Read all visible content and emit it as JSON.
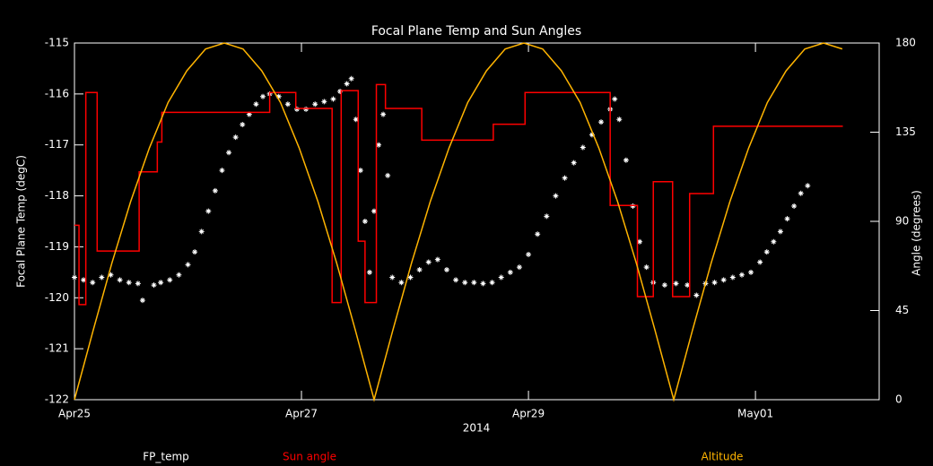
{
  "chart_data": {
    "type": "combo",
    "title": "Focal Plane Temp and Sun Angles",
    "xlabel": "2014",
    "ylabel": "Focal Plane Temp (degC)",
    "y2label": "Angle (degrees)",
    "xlim": [
      0,
      7.09
    ],
    "xticks": [
      {
        "value": 0,
        "label": "Apr25"
      },
      {
        "value": 2,
        "label": "Apr27"
      },
      {
        "value": 4,
        "label": "Apr29"
      },
      {
        "value": 6,
        "label": "May01"
      }
    ],
    "ylim": [
      -122,
      -115
    ],
    "yticks": [
      -122,
      -121,
      -120,
      -119,
      -118,
      -117,
      -116,
      -115
    ],
    "y2lim": [
      0,
      180
    ],
    "y2ticks": [
      0,
      45,
      90,
      135,
      180
    ],
    "series": [
      {
        "name": "FP_temp",
        "type": "scatter",
        "color": "#ffffff",
        "x": [
          0,
          0.08,
          0.16,
          0.24,
          0.32,
          0.4,
          0.48,
          0.56,
          0.6,
          0.7,
          0.76,
          0.84,
          0.92,
          1.0,
          1.06,
          1.12,
          1.18,
          1.24,
          1.3,
          1.36,
          1.42,
          1.48,
          1.54,
          1.6,
          1.66,
          1.72,
          1.8,
          1.88,
          1.96,
          2.04,
          2.12,
          2.2,
          2.28,
          2.34,
          2.4,
          2.44,
          2.48,
          2.52,
          2.56,
          2.6,
          2.64,
          2.68,
          2.72,
          2.76,
          2.8,
          2.88,
          2.96,
          3.04,
          3.12,
          3.2,
          3.28,
          3.36,
          3.44,
          3.52,
          3.6,
          3.68,
          3.76,
          3.84,
          3.92,
          4.0,
          4.08,
          4.16,
          4.24,
          4.32,
          4.4,
          4.48,
          4.56,
          4.64,
          4.72,
          4.76,
          4.8,
          4.86,
          4.92,
          4.98,
          5.04,
          5.1,
          5.2,
          5.3,
          5.4,
          5.48,
          5.56,
          5.64,
          5.72,
          5.8,
          5.88,
          5.96,
          6.04,
          6.1,
          6.16,
          6.22,
          6.28,
          6.34,
          6.4,
          6.46
        ],
        "values": [
          -119.6,
          -119.65,
          -119.7,
          -119.6,
          -119.55,
          -119.65,
          -119.7,
          -119.72,
          -120.05,
          -119.75,
          -119.7,
          -119.65,
          -119.55,
          -119.35,
          -119.1,
          -118.7,
          -118.3,
          -117.9,
          -117.5,
          -117.15,
          -116.85,
          -116.6,
          -116.4,
          -116.2,
          -116.05,
          -116.0,
          -116.05,
          -116.2,
          -116.3,
          -116.3,
          -116.2,
          -116.15,
          -116.1,
          -115.95,
          -115.8,
          -115.7,
          -116.5,
          -117.5,
          -118.5,
          -119.5,
          -118.3,
          -117.0,
          -116.4,
          -117.6,
          -119.6,
          -119.7,
          -119.6,
          -119.45,
          -119.3,
          -119.25,
          -119.45,
          -119.65,
          -119.7,
          -119.7,
          -119.72,
          -119.7,
          -119.6,
          -119.5,
          -119.4,
          -119.15,
          -118.75,
          -118.4,
          -118.0,
          -117.65,
          -117.35,
          -117.05,
          -116.8,
          -116.55,
          -116.3,
          -116.1,
          -116.5,
          -117.3,
          -118.2,
          -118.9,
          -119.4,
          -119.7,
          -119.75,
          -119.72,
          -119.75,
          -119.95,
          -119.72,
          -119.7,
          -119.65,
          -119.6,
          -119.55,
          -119.5,
          -119.3,
          -119.1,
          -118.9,
          -118.7,
          -118.45,
          -118.2,
          -117.95,
          -117.8
        ]
      },
      {
        "name": "Sun angle",
        "type": "line",
        "axis": "y2",
        "color": "#ff0000",
        "x": [
          0,
          0.04,
          0.04,
          0.1,
          0.1,
          0.2,
          0.2,
          0.57,
          0.57,
          0.73,
          0.73,
          0.77,
          0.77,
          1.72,
          1.72,
          1.95,
          1.95,
          2.27,
          2.27,
          2.35,
          2.35,
          2.5,
          2.5,
          2.56,
          2.56,
          2.66,
          2.66,
          2.74,
          2.74,
          3.06,
          3.06,
          3.69,
          3.69,
          3.97,
          3.97,
          4.72,
          4.72,
          4.96,
          4.96,
          5.1,
          5.1,
          5.27,
          5.27,
          5.42,
          5.42,
          5.63,
          5.63,
          6.77
        ],
        "values": [
          88,
          88,
          48,
          48,
          155,
          155,
          75,
          75,
          115,
          115,
          130,
          130,
          145,
          145,
          155,
          155,
          147,
          147,
          49,
          49,
          156,
          156,
          80,
          80,
          49,
          49,
          159,
          159,
          147,
          147,
          131,
          131,
          139,
          139,
          155,
          155,
          98,
          98,
          52,
          52,
          110,
          110,
          52,
          52,
          104,
          104,
          138,
          138
        ]
      },
      {
        "name": "Altitude",
        "type": "line",
        "axis": "y2",
        "color": "#ffb400",
        "x": [
          0,
          0.165,
          0.33,
          0.495,
          0.66,
          0.825,
          0.99,
          1.155,
          1.32,
          1.485,
          1.65,
          1.815,
          1.98,
          2.145,
          2.31,
          2.475,
          2.64,
          2.805,
          2.97,
          3.135,
          3.3,
          3.465,
          3.63,
          3.795,
          3.96,
          4.125,
          4.29,
          4.455,
          4.62,
          4.785,
          4.95,
          5.115,
          5.28,
          5.445,
          5.61,
          5.775,
          5.94,
          6.105,
          6.27,
          6.435,
          6.6,
          6.765
        ],
        "values": [
          0,
          35,
          69,
          100,
          127,
          150,
          166,
          177,
          180,
          177,
          166,
          150,
          127,
          100,
          69,
          35,
          0,
          35,
          69,
          100,
          127,
          150,
          166,
          177,
          180,
          177,
          166,
          150,
          127,
          100,
          69,
          35,
          0,
          35,
          69,
          100,
          127,
          150,
          166,
          177,
          180,
          177
        ]
      }
    ]
  }
}
